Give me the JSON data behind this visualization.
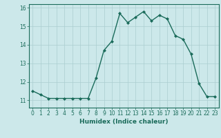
{
  "x": [
    0,
    1,
    2,
    3,
    4,
    5,
    6,
    7,
    8,
    9,
    10,
    11,
    12,
    13,
    14,
    15,
    16,
    17,
    18,
    19,
    20,
    21,
    22,
    23
  ],
  "y": [
    11.5,
    11.3,
    11.1,
    11.1,
    11.1,
    11.1,
    11.1,
    11.1,
    12.2,
    13.7,
    14.2,
    15.7,
    15.2,
    15.5,
    15.8,
    15.3,
    15.6,
    15.4,
    14.5,
    14.3,
    13.5,
    11.9,
    11.2,
    11.2
  ],
  "line_color": "#1a6b5a",
  "marker": "D",
  "marker_size": 2.0,
  "bg_color": "#cce8ea",
  "grid_color": "#aacdd0",
  "xlabel": "Humidex (Indice chaleur)",
  "ylim": [
    10.6,
    16.2
  ],
  "xlim": [
    -0.5,
    23.5
  ],
  "yticks": [
    11,
    12,
    13,
    14,
    15,
    16
  ],
  "xticks": [
    0,
    1,
    2,
    3,
    4,
    5,
    6,
    7,
    8,
    9,
    10,
    11,
    12,
    13,
    14,
    15,
    16,
    17,
    18,
    19,
    20,
    21,
    22,
    23
  ],
  "tick_fontsize": 5.5,
  "xlabel_fontsize": 6.5,
  "linewidth": 1.0
}
